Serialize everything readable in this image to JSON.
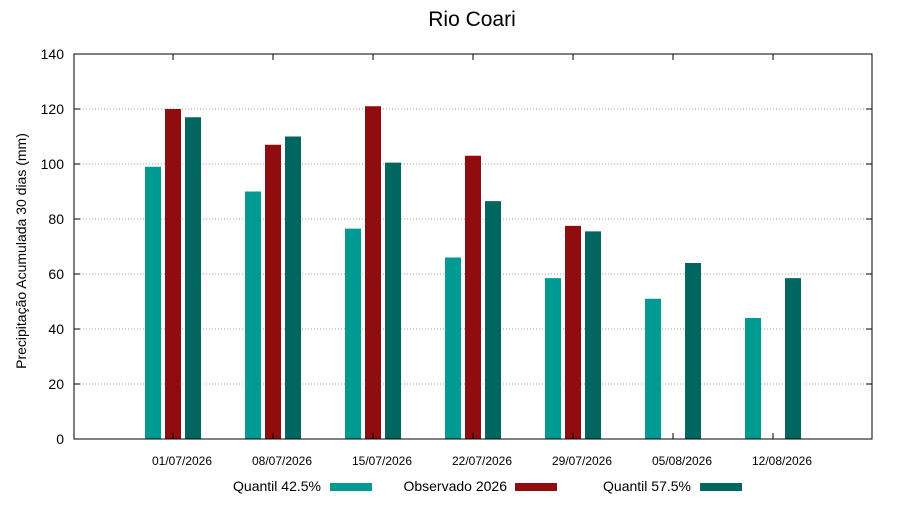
{
  "chart_data": {
    "type": "bar",
    "title": "Rio Coari",
    "ylabel": "Precipitação Acumulada 30 dias (mm)",
    "xlabel": "",
    "ylim": [
      0,
      140
    ],
    "yticks": [
      0,
      20,
      40,
      60,
      80,
      100,
      120,
      140
    ],
    "grid": true,
    "legend_position": "bottom",
    "categories": [
      "01/07/2026",
      "08/07/2026",
      "15/07/2026",
      "22/07/2026",
      "29/07/2026",
      "05/08/2026",
      "12/08/2026"
    ],
    "series": [
      {
        "name": "Quantil 42.5%",
        "color": "#009a93",
        "values": [
          99,
          90,
          76.5,
          66,
          58.5,
          51,
          44
        ]
      },
      {
        "name": "Observado 2026",
        "color": "#8f0d0f",
        "values": [
          120,
          107,
          121,
          103,
          77.5,
          null,
          null
        ]
      },
      {
        "name": "Quantil 57.5%",
        "color": "#00665f",
        "values": [
          117,
          110,
          100.5,
          86.5,
          75.5,
          64,
          58.5
        ]
      }
    ]
  }
}
